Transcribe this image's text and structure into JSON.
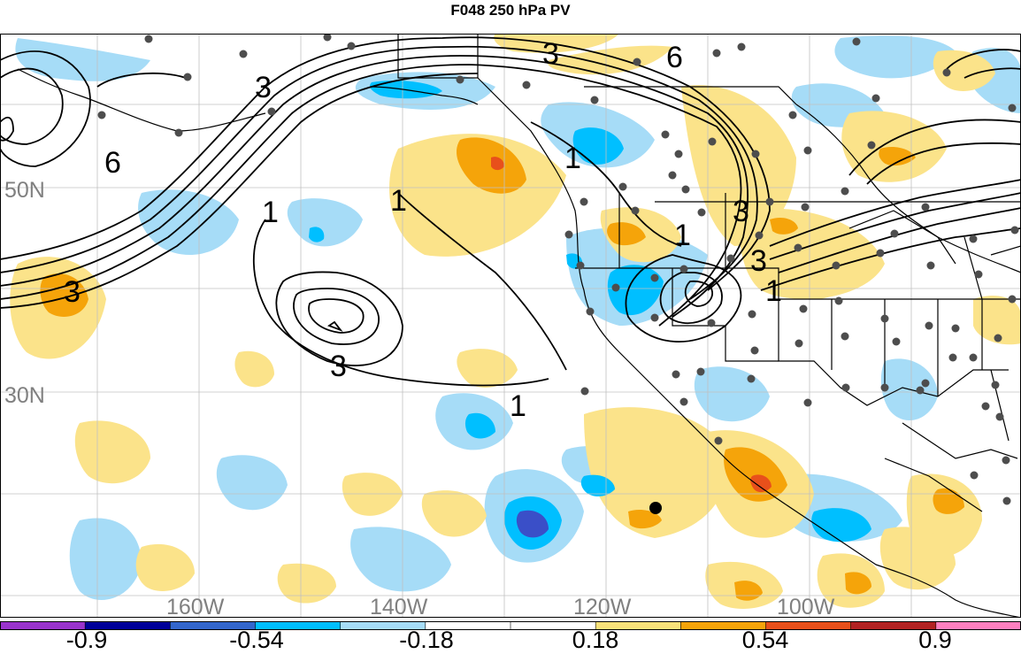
{
  "title": "F048 250 hPa PV",
  "lat_labels": [
    "50N",
    "30N"
  ],
  "lon_labels": [
    "160W",
    "140W",
    "120W",
    "100W"
  ],
  "contour_labels": [
    "3",
    "6",
    "6",
    "3",
    "1",
    "1",
    "1",
    "1",
    "3",
    "3",
    "3",
    "3",
    "1",
    "1"
  ],
  "colorbar": {
    "labels": [
      "-0.9",
      "-0.54",
      "-0.18",
      "0.18",
      "0.54",
      "0.9"
    ],
    "colors": [
      "#9933cc",
      "#000099",
      "#3366cc",
      "#00bfff",
      "#a6dcf7",
      "#ffffff",
      "#ffffff",
      "#f9e27a",
      "#f5a40a",
      "#e8501b",
      "#b22222",
      "#ff80c0"
    ]
  },
  "colors": {
    "light_blue": "#a6dcf7",
    "blue": "#00bfff",
    "dark_blue": "#3a4fc8",
    "light_yellow": "#fbe38a",
    "orange": "#f5a40a",
    "red_orange": "#e8501b",
    "station_dot": "#4d4d4d"
  }
}
